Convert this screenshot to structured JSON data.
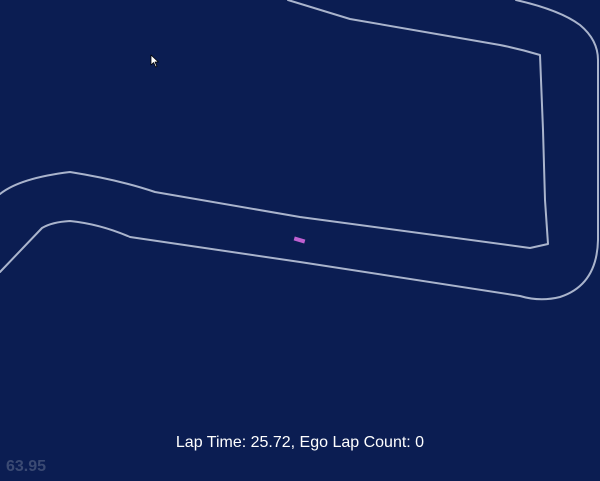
{
  "hud": {
    "lap_time_label": "Lap Time: 25.72, Ego Lap Count: 0",
    "fps_label": "63.95"
  },
  "colors": {
    "background": "#0b1d52",
    "track_boundary": "#aab4cc",
    "ego_car": "#c060d0"
  },
  "icons": {
    "cursor": "mouse-pointer-icon"
  }
}
